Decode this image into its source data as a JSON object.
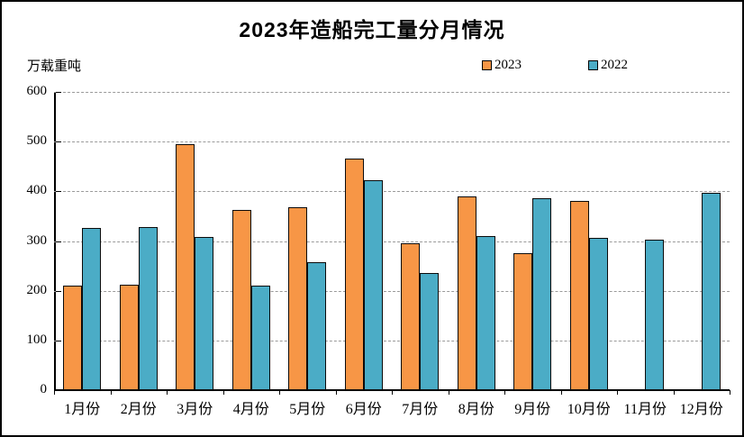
{
  "chart_data": {
    "type": "bar",
    "title": "2023年造船完工量分月情况",
    "ylabel": "万载重吨",
    "categories": [
      "1月份",
      "2月份",
      "3月份",
      "4月份",
      "5月份",
      "6月份",
      "7月份",
      "8月份",
      "9月份",
      "10月份",
      "11月份",
      "12月份"
    ],
    "series": [
      {
        "name": "2023",
        "color": "#F79646",
        "values": [
          211,
          212,
          494,
          362,
          368,
          466,
          296,
          389,
          276,
          381,
          null,
          null
        ]
      },
      {
        "name": "2022",
        "color": "#4BACC6",
        "values": [
          326,
          328,
          308,
          210,
          257,
          422,
          236,
          310,
          386,
          306,
          303,
          397
        ]
      }
    ],
    "ylim": [
      0,
      600
    ],
    "yticks": [
      0,
      100,
      200,
      300,
      400,
      500,
      600
    ],
    "grid": "horizontal-dashed",
    "legend_position": "top-right",
    "axis_color": "#000000",
    "gridline_color": "#9a9a9a"
  }
}
